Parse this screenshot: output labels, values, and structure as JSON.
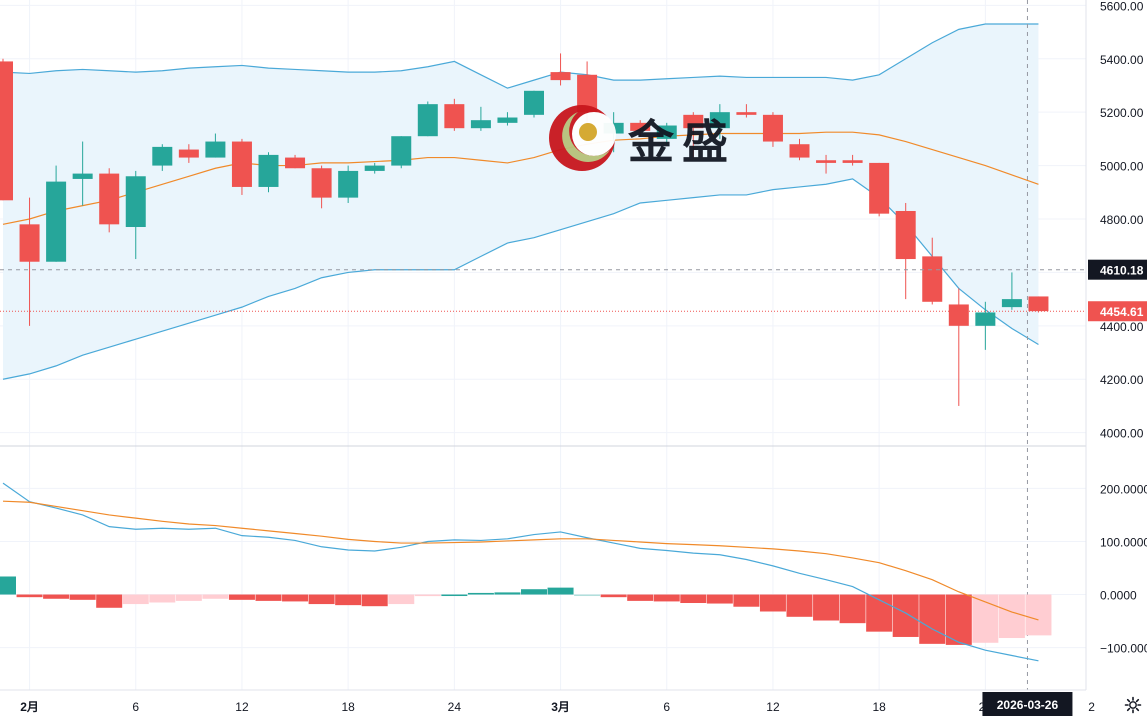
{
  "watermark": {
    "text": "金盛"
  },
  "crosshair": {
    "date_label": "2026-03-26",
    "price_label": "4610.18"
  },
  "colors": {
    "up": "#26a69a",
    "down": "#ef5350",
    "band_line": "#4aa9d8",
    "band_fill": "#eaf5fc",
    "ma_line": "#f08a2a",
    "macd_line": "#4aa9d8",
    "signal_line": "#f08a2a",
    "hist_down_strong": "#ef5350",
    "hist_down_weak": "#ffcdd2",
    "hist_up_strong": "#26a69a",
    "hist_up_weak": "#b2dfdb",
    "last_price_bg": "#ef5350",
    "crosshair_bg": "#131722"
  },
  "chart_data": [
    {
      "type": "candlestick",
      "indicator": "Bollinger Bands",
      "y_axis_ticks": [
        4000,
        4200,
        4400,
        4600,
        4800,
        5000,
        5200,
        5400,
        5600
      ],
      "y_tick_labels": [
        "4000.00",
        "4200.00",
        "4400.00",
        "4600.00",
        "4800.00",
        "5000.00",
        "5200.00",
        "5400.00",
        "5600.00"
      ],
      "ylim": [
        3950,
        5620
      ],
      "x_tick_labels": [
        "2月",
        "6",
        "12",
        "18",
        "24",
        "3月",
        "6",
        "12",
        "18",
        "24",
        "2"
      ],
      "last_price": 4454.61,
      "last_price_label": "4454.61",
      "candles": [
        {
          "x": 0,
          "open": 5390,
          "high": 5400,
          "low": 4870,
          "close": 4870
        },
        {
          "x": 1,
          "open": 4780,
          "high": 4880,
          "low": 4400,
          "close": 4640
        },
        {
          "x": 2,
          "open": 4640,
          "high": 5000,
          "low": 4640,
          "close": 4940
        },
        {
          "x": 3,
          "open": 4950,
          "high": 5090,
          "low": 4850,
          "close": 4970
        },
        {
          "x": 4,
          "open": 4970,
          "high": 4990,
          "low": 4750,
          "close": 4780
        },
        {
          "x": 5,
          "open": 4770,
          "high": 4980,
          "low": 4650,
          "close": 4960
        },
        {
          "x": 6,
          "open": 5000,
          "high": 5080,
          "low": 4980,
          "close": 5070
        },
        {
          "x": 7,
          "open": 5060,
          "high": 5080,
          "low": 5010,
          "close": 5030
        },
        {
          "x": 8,
          "open": 5030,
          "high": 5120,
          "low": 5030,
          "close": 5090
        },
        {
          "x": 9,
          "open": 5090,
          "high": 5100,
          "low": 4890,
          "close": 4920
        },
        {
          "x": 10,
          "open": 4920,
          "high": 5050,
          "low": 4900,
          "close": 5040
        },
        {
          "x": 11,
          "open": 5030,
          "high": 5040,
          "low": 4990,
          "close": 4990
        },
        {
          "x": 12,
          "open": 4990,
          "high": 5000,
          "low": 4840,
          "close": 4880
        },
        {
          "x": 13,
          "open": 4880,
          "high": 5000,
          "low": 4860,
          "close": 4980
        },
        {
          "x": 14,
          "open": 4980,
          "high": 5010,
          "low": 4970,
          "close": 5000
        },
        {
          "x": 15,
          "open": 5000,
          "high": 5110,
          "low": 4990,
          "close": 5110
        },
        {
          "x": 16,
          "open": 5110,
          "high": 5240,
          "low": 5110,
          "close": 5230
        },
        {
          "x": 17,
          "open": 5230,
          "high": 5250,
          "low": 5130,
          "close": 5140
        },
        {
          "x": 18,
          "open": 5140,
          "high": 5220,
          "low": 5130,
          "close": 5170
        },
        {
          "x": 19,
          "open": 5160,
          "high": 5200,
          "low": 5150,
          "close": 5180
        },
        {
          "x": 20,
          "open": 5190,
          "high": 5280,
          "low": 5180,
          "close": 5280
        },
        {
          "x": 21,
          "open": 5350,
          "high": 5420,
          "low": 5300,
          "close": 5320
        },
        {
          "x": 22,
          "open": 5340,
          "high": 5390,
          "low": 5160,
          "close": 5200
        },
        {
          "x": 23,
          "open": 5120,
          "high": 5200,
          "low": 5050,
          "close": 5160
        },
        {
          "x": 24,
          "open": 5160,
          "high": 5170,
          "low": 5110,
          "close": 5130
        },
        {
          "x": 25,
          "open": 5100,
          "high": 5160,
          "low": 5080,
          "close": 5150
        },
        {
          "x": 26,
          "open": 5190,
          "high": 5200,
          "low": 5030,
          "close": 5140
        },
        {
          "x": 27,
          "open": 5140,
          "high": 5230,
          "low": 5100,
          "close": 5200
        },
        {
          "x": 28,
          "open": 5200,
          "high": 5230,
          "low": 5180,
          "close": 5190
        },
        {
          "x": 29,
          "open": 5190,
          "high": 5200,
          "low": 5070,
          "close": 5090
        },
        {
          "x": 30,
          "open": 5080,
          "high": 5100,
          "low": 5020,
          "close": 5030
        },
        {
          "x": 31,
          "open": 5020,
          "high": 5040,
          "low": 4970,
          "close": 5010
        },
        {
          "x": 32,
          "open": 5020,
          "high": 5040,
          "low": 5000,
          "close": 5010
        },
        {
          "x": 33,
          "open": 5010,
          "high": 5010,
          "low": 4810,
          "close": 4820
        },
        {
          "x": 34,
          "open": 4830,
          "high": 4860,
          "low": 4500,
          "close": 4650
        },
        {
          "x": 35,
          "open": 4660,
          "high": 4730,
          "low": 4480,
          "close": 4490
        },
        {
          "x": 36,
          "open": 4480,
          "high": 4540,
          "low": 4100,
          "close": 4400
        },
        {
          "x": 37,
          "open": 4400,
          "high": 4490,
          "low": 4310,
          "close": 4450
        },
        {
          "x": 38,
          "open": 4470,
          "high": 4600,
          "low": 4460,
          "close": 4500
        },
        {
          "x": 39,
          "open": 4510,
          "high": 4510,
          "low": 4450,
          "close": 4455
        }
      ],
      "bollinger_upper": [
        5350,
        5345,
        5355,
        5360,
        5355,
        5350,
        5355,
        5365,
        5370,
        5375,
        5365,
        5360,
        5355,
        5350,
        5350,
        5355,
        5370,
        5390,
        5340,
        5290,
        5320,
        5350,
        5340,
        5320,
        5320,
        5325,
        5330,
        5335,
        5330,
        5330,
        5330,
        5330,
        5320,
        5340,
        5400,
        5460,
        5510,
        5530,
        5530,
        5530
      ],
      "bollinger_middle": [
        4780,
        4800,
        4830,
        4850,
        4870,
        4900,
        4930,
        4960,
        4990,
        5010,
        5000,
        5000,
        5010,
        5010,
        5015,
        5020,
        5030,
        5030,
        5020,
        5010,
        5030,
        5060,
        5080,
        5095,
        5100,
        5110,
        5115,
        5120,
        5120,
        5120,
        5120,
        5125,
        5125,
        5115,
        5090,
        5060,
        5030,
        5000,
        4965,
        4930
      ],
      "bollinger_lower": [
        4200,
        4220,
        4250,
        4290,
        4320,
        4350,
        4380,
        4410,
        4440,
        4470,
        4510,
        4540,
        4580,
        4600,
        4610,
        4610,
        4610,
        4610,
        4660,
        4710,
        4730,
        4760,
        4790,
        4820,
        4860,
        4870,
        4880,
        4890,
        4890,
        4910,
        4920,
        4930,
        4950,
        4880,
        4780,
        4660,
        4540,
        4460,
        4390,
        4330
      ],
      "crosshair_price": 4610.18
    },
    {
      "type": "macd",
      "y_axis_ticks": [
        -100,
        0,
        100,
        200
      ],
      "y_tick_labels": [
        "−100.0000",
        "0.0000",
        "100.0000",
        "200.0000"
      ],
      "ylim": [
        -180,
        280
      ],
      "macd": [
        210,
        175,
        163,
        150,
        128,
        123,
        125,
        123,
        125,
        111,
        108,
        102,
        90,
        84,
        82,
        89,
        100,
        103,
        102,
        105,
        113,
        118,
        107,
        97,
        87,
        83,
        78,
        75,
        66,
        54,
        40,
        28,
        15,
        -10,
        -35,
        -65,
        -90,
        -105,
        -115,
        -125
      ],
      "signal": [
        176,
        174,
        166,
        158,
        150,
        144,
        138,
        133,
        130,
        125,
        120,
        115,
        110,
        104,
        100,
        97,
        97,
        98,
        99,
        101,
        103,
        105,
        105,
        102,
        99,
        96,
        94,
        92,
        89,
        86,
        82,
        77,
        69,
        60,
        45,
        28,
        5,
        -14,
        -33,
        -48
      ],
      "histogram": [
        34,
        -5,
        -8,
        -10,
        -25,
        -18,
        -15,
        -12,
        -8,
        -10,
        -12,
        -13,
        -18,
        -20,
        -22,
        -18,
        -3,
        0,
        3,
        4,
        10,
        13,
        0,
        -5,
        -12,
        -13,
        -16,
        -17,
        -23,
        -32,
        -42,
        -49,
        -54,
        -70,
        -80,
        -93,
        -95,
        -91,
        -82,
        -77
      ]
    }
  ]
}
